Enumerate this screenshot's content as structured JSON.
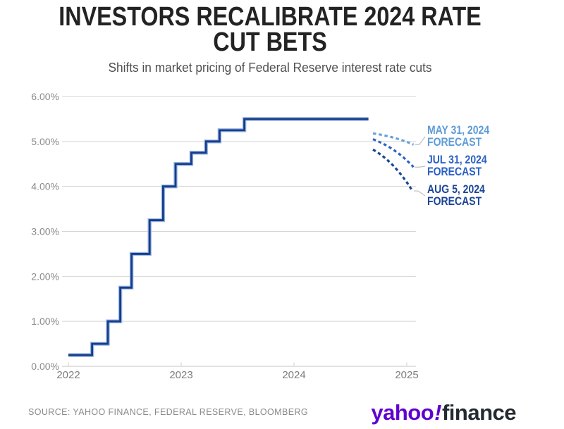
{
  "header": {
    "title_line1": "INVESTORS RECALIBRATE 2024 RATE",
    "title_line2": "CUT BETS",
    "subtitle": "Shifts in market pricing of Federal Reserve interest rate cuts"
  },
  "chart_data": {
    "type": "line",
    "title": "INVESTORS RECALIBRATE 2024 RATE CUT BETS",
    "subtitle": "Shifts in market pricing of Federal Reserve interest rate cuts",
    "x_axis": {
      "ticks": [
        2022,
        2023,
        2024,
        2025
      ],
      "range": [
        2021.94,
        2025.08
      ],
      "gridlines": false
    },
    "y_axis": {
      "tick_values": [
        0,
        1,
        2,
        3,
        4,
        5,
        6
      ],
      "tick_labels": [
        "0.00%",
        "1.00%",
        "2.00%",
        "3.00%",
        "4.00%",
        "5.00%",
        "6.00%"
      ],
      "range": [
        0,
        6
      ],
      "unit": "%",
      "gridlines": true
    },
    "series": [
      {
        "name": "Fed funds rate (actual)",
        "type": "step",
        "line_style": "solid",
        "color": "#163D8C",
        "halo_color": "#98B5E0",
        "points": [
          [
            2022.0,
            0.25
          ],
          [
            2022.21,
            0.5
          ],
          [
            2022.35,
            1.0
          ],
          [
            2022.46,
            1.75
          ],
          [
            2022.56,
            2.5
          ],
          [
            2022.72,
            3.25
          ],
          [
            2022.84,
            4.0
          ],
          [
            2022.95,
            4.5
          ],
          [
            2023.09,
            4.75
          ],
          [
            2023.22,
            5.0
          ],
          [
            2023.34,
            5.25
          ],
          [
            2023.56,
            5.5
          ]
        ],
        "end_x": 2024.66
      },
      {
        "name": "MAY 31, 2024 FORECAST",
        "label_lines": [
          "MAY 31, 2024",
          "FORECAST"
        ],
        "type": "forecast",
        "line_style": "dashed",
        "color": "#66A1DC",
        "label_color": "#5E9CD8",
        "start": [
          2024.7,
          5.18
        ],
        "end": [
          2025.06,
          4.93
        ]
      },
      {
        "name": "JUL 31, 2024 FORECAST",
        "label_lines": [
          "JUL 31, 2024",
          "FORECAST"
        ],
        "type": "forecast",
        "line_style": "dashed",
        "color": "#2C63C8",
        "label_color": "#2A60C4",
        "start": [
          2024.7,
          5.05
        ],
        "end": [
          2025.06,
          4.43
        ]
      },
      {
        "name": "AUG 5, 2024 FORECAST",
        "label_lines": [
          "AUG 5, 2024",
          "FORECAST"
        ],
        "type": "forecast",
        "line_style": "dashed",
        "color": "#1B4597",
        "label_color": "#1B4597",
        "start": [
          2024.7,
          4.82
        ],
        "end": [
          2025.05,
          3.9
        ]
      }
    ],
    "legend_position": "right-annotations",
    "gridline_color": "#d4d4d4",
    "axis_label_color": "#8a8a8a"
  },
  "footer": {
    "source": "SOURCE: YAHOO FINANCE, FEDERAL RESERVE, BLOOMBERG",
    "logo": {
      "yahoo": "yahoo",
      "bang": "!",
      "finance": "finance",
      "purple": "#5F01D1",
      "dark": "#232A31"
    }
  }
}
